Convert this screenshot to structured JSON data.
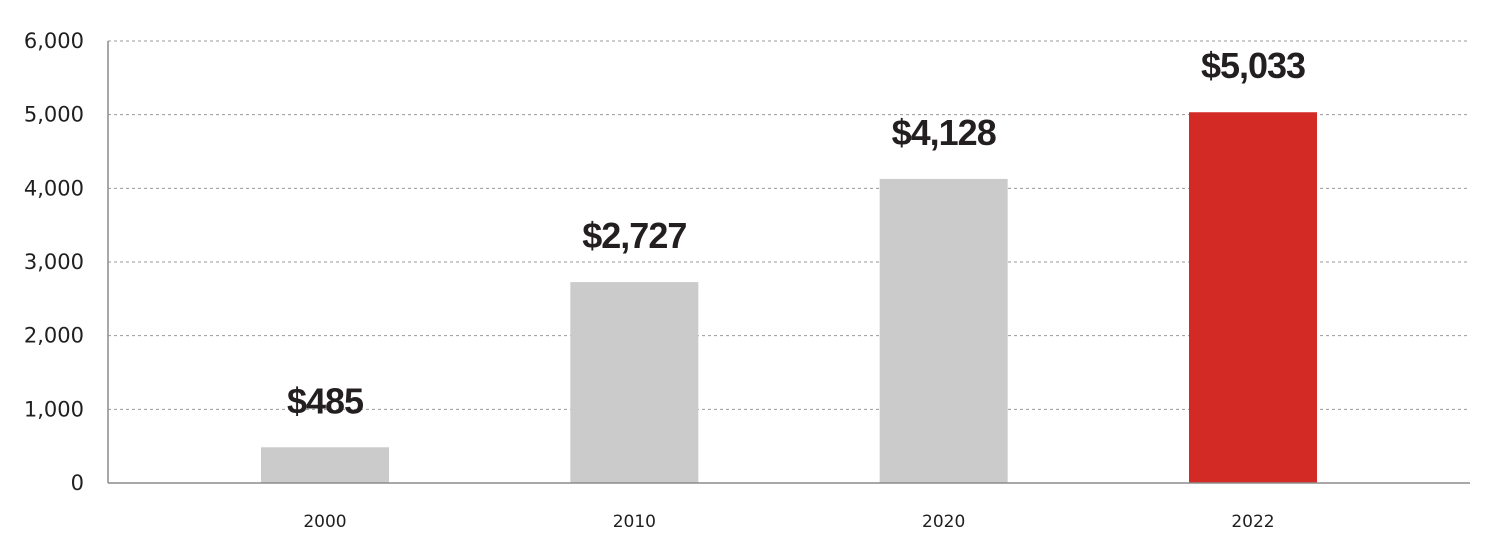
{
  "chart_data": {
    "type": "bar",
    "title": "",
    "xlabel": "",
    "ylabel": "",
    "categories": [
      "2000",
      "2010",
      "2020",
      "2022"
    ],
    "values": [
      485,
      2727,
      4128,
      5033
    ],
    "value_labels": [
      "$485",
      "$2,727",
      "$4,128",
      "$5,033"
    ],
    "bar_colors": [
      "#cbcbcb",
      "#cbcbcb",
      "#cbcbcb",
      "#d42a26"
    ],
    "ylim": [
      0,
      6000
    ],
    "yticks": [
      0,
      1000,
      2000,
      3000,
      4000,
      5000,
      6000
    ],
    "ytick_labels": [
      "0",
      "1,000",
      "2,000",
      "3,000",
      "4,000",
      "5,000",
      "6,000"
    ],
    "grid": true,
    "grid_style": "dashed",
    "legend": "none"
  }
}
